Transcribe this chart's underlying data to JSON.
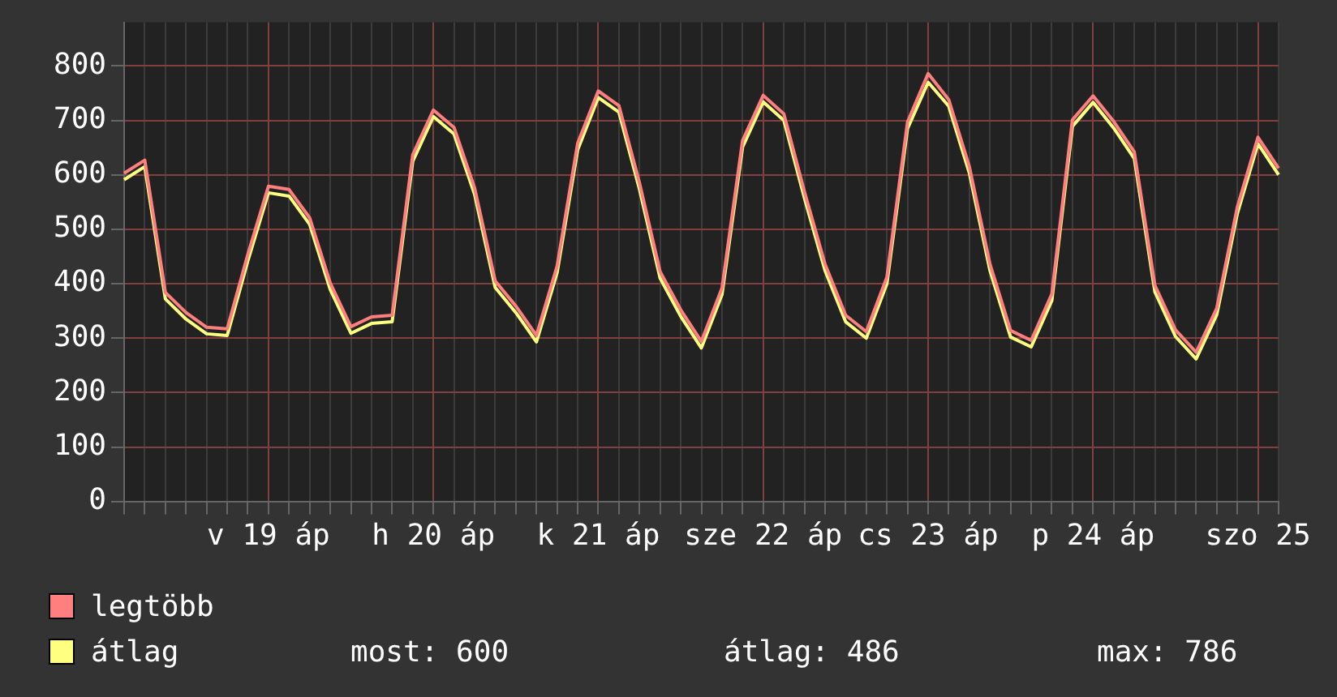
{
  "chart_data": {
    "type": "line",
    "categories": [
      null,
      null,
      null,
      null,
      null,
      null,
      null,
      "v 19 áp",
      null,
      null,
      null,
      null,
      null,
      null,
      null,
      "h 20 áp",
      null,
      null,
      null,
      null,
      null,
      null,
      null,
      "k 21 áp",
      null,
      null,
      null,
      null,
      null,
      null,
      null,
      "sze 22 áp",
      null,
      null,
      null,
      null,
      null,
      null,
      null,
      "cs 23 áp",
      null,
      null,
      null,
      null,
      null,
      null,
      null,
      "p 24 áp",
      null,
      null,
      null,
      null,
      null,
      null,
      null,
      "szo 25",
      null
    ],
    "series": [
      {
        "name": "legtöbb",
        "color": "#ff7f7f",
        "values": [
          603,
          627,
          384,
          347,
          320,
          317,
          454,
          579,
          573,
          521,
          401,
          321,
          339,
          342,
          637,
          719,
          687,
          576,
          405,
          359,
          305,
          432,
          658,
          754,
          727,
          585,
          422,
          352,
          294,
          392,
          663,
          746,
          712,
          569,
          436,
          342,
          312,
          412,
          697,
          786,
          738,
          615,
          436,
          314,
          296,
          381,
          701,
          745,
          698,
          642,
          397,
          315,
          274,
          355,
          541,
          669,
          612
        ]
      },
      {
        "name": "átlag",
        "color": "#ffff80",
        "values": [
          591,
          615,
          372,
          335,
          308,
          305,
          442,
          567,
          561,
          509,
          389,
          309,
          327,
          330,
          625,
          707,
          675,
          564,
          393,
          347,
          293,
          420,
          646,
          742,
          715,
          573,
          410,
          340,
          282,
          380,
          651,
          734,
          700,
          557,
          424,
          330,
          300,
          400,
          685,
          770,
          726,
          603,
          424,
          302,
          284,
          369,
          689,
          733,
          686,
          630,
          385,
          303,
          262,
          343,
          529,
          657,
          600
        ]
      }
    ],
    "ylim": [
      0,
      880
    ],
    "yticks": [
      0,
      100,
      200,
      300,
      400,
      500,
      600,
      700,
      800
    ],
    "grid": true,
    "legend": "bottom left",
    "annotations": [
      "most: 600",
      "átlag: 486",
      "max: 786"
    ]
  }
}
